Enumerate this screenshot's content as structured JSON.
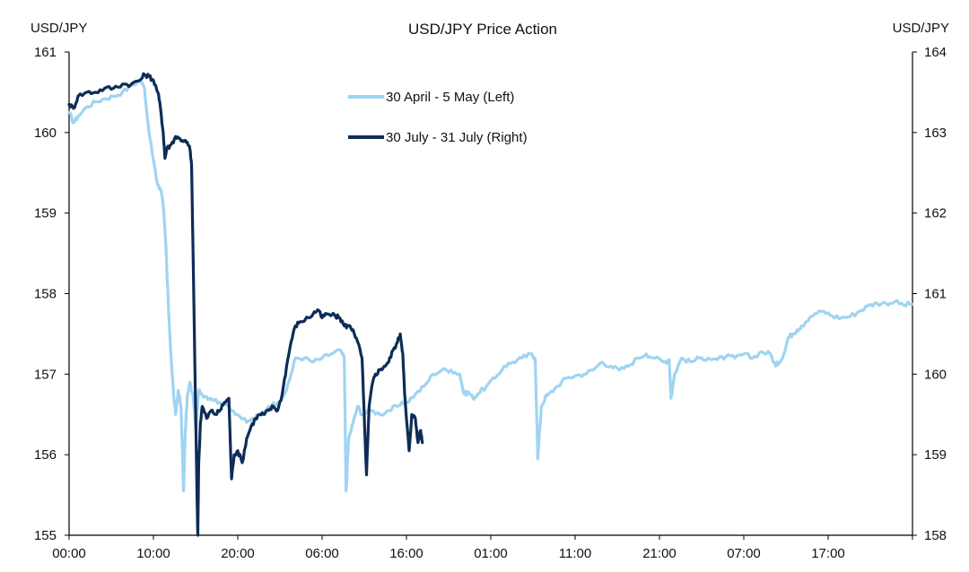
{
  "chart_data": {
    "type": "line",
    "title": "USD/JPY Price Action",
    "y_left_label": "USD/JPY",
    "y_right_label": "USD/JPY",
    "x_ticks": [
      "00:00",
      "10:00",
      "20:00",
      "06:00",
      "16:00",
      "01:00",
      "11:00",
      "21:00",
      "07:00",
      "17:00"
    ],
    "x_range_hours": [
      0,
      95
    ],
    "ylim_left": [
      155,
      161
    ],
    "ylim_right": [
      158,
      164
    ],
    "y_left_ticks": [
      "155",
      "156",
      "157",
      "158",
      "159",
      "160",
      "161"
    ],
    "y_right_ticks": [
      "158",
      "159",
      "160",
      "161",
      "162",
      "163",
      "164"
    ],
    "legend_position": "top-left",
    "series": [
      {
        "name": "30 April - 5 May (Left)",
        "axis": "left",
        "color": "#9fd4f2",
        "points": [
          [
            0.0,
            160.25
          ],
          [
            0.5,
            160.12
          ],
          [
            1.0,
            160.2
          ],
          [
            2.0,
            160.32
          ],
          [
            3.0,
            160.38
          ],
          [
            4.0,
            160.42
          ],
          [
            5.0,
            160.45
          ],
          [
            6.0,
            160.5
          ],
          [
            7.0,
            160.58
          ],
          [
            8.0,
            160.65
          ],
          [
            8.5,
            160.55
          ],
          [
            8.8,
            160.2
          ],
          [
            9.0,
            160.0
          ],
          [
            9.3,
            159.8
          ],
          [
            9.6,
            159.6
          ],
          [
            9.8,
            159.45
          ],
          [
            10.0,
            159.35
          ],
          [
            10.3,
            159.3
          ],
          [
            10.6,
            159.1
          ],
          [
            10.9,
            158.6
          ],
          [
            11.2,
            157.8
          ],
          [
            11.5,
            157.2
          ],
          [
            11.8,
            156.7
          ],
          [
            12.0,
            156.5
          ],
          [
            12.3,
            156.8
          ],
          [
            12.6,
            156.6
          ],
          [
            12.9,
            155.55
          ],
          [
            13.1,
            156.3
          ],
          [
            13.3,
            156.7
          ],
          [
            13.6,
            156.9
          ],
          [
            14.0,
            156.7
          ],
          [
            14.3,
            156.3
          ],
          [
            14.6,
            156.8
          ],
          [
            15.0,
            156.75
          ],
          [
            15.5,
            156.72
          ],
          [
            16.0,
            156.7
          ],
          [
            17.0,
            156.65
          ],
          [
            18.0,
            156.6
          ],
          [
            19.0,
            156.5
          ],
          [
            20.0,
            156.4
          ],
          [
            20.8,
            156.45
          ],
          [
            21.5,
            156.5
          ],
          [
            22.5,
            156.6
          ],
          [
            23.5,
            156.65
          ],
          [
            24.5,
            156.8
          ],
          [
            25.0,
            157.0
          ],
          [
            25.5,
            157.2
          ],
          [
            26.5,
            157.2
          ],
          [
            27.5,
            157.15
          ],
          [
            28.5,
            157.2
          ],
          [
            29.5,
            157.25
          ],
          [
            30.5,
            157.3
          ],
          [
            31.0,
            157.2
          ],
          [
            31.2,
            155.55
          ],
          [
            31.5,
            156.2
          ],
          [
            32.0,
            156.4
          ],
          [
            32.5,
            156.6
          ],
          [
            33.0,
            156.5
          ],
          [
            34.0,
            156.55
          ],
          [
            35.0,
            156.5
          ],
          [
            36.0,
            156.55
          ],
          [
            37.0,
            156.6
          ],
          [
            38.0,
            156.65
          ],
          [
            39.0,
            156.75
          ],
          [
            40.0,
            156.85
          ],
          [
            41.0,
            157.0
          ],
          [
            42.0,
            157.05
          ],
          [
            43.0,
            157.05
          ],
          [
            44.0,
            157.0
          ],
          [
            44.5,
            156.75
          ],
          [
            45.0,
            156.78
          ],
          [
            45.5,
            156.7
          ],
          [
            46.0,
            156.75
          ],
          [
            47.0,
            156.85
          ],
          [
            48.0,
            156.95
          ],
          [
            49.0,
            157.1
          ],
          [
            50.0,
            157.15
          ],
          [
            51.0,
            157.2
          ],
          [
            52.0,
            157.25
          ],
          [
            52.5,
            157.2
          ],
          [
            52.8,
            155.95
          ],
          [
            53.2,
            156.6
          ],
          [
            53.6,
            156.7
          ],
          [
            54.0,
            156.75
          ],
          [
            55.0,
            156.85
          ],
          [
            56.0,
            156.95
          ],
          [
            57.0,
            156.98
          ],
          [
            58.0,
            157.0
          ],
          [
            59.0,
            157.05
          ],
          [
            60.0,
            157.15
          ],
          [
            61.0,
            157.1
          ],
          [
            62.0,
            157.05
          ],
          [
            63.0,
            157.1
          ],
          [
            64.0,
            157.2
          ],
          [
            65.0,
            157.25
          ],
          [
            66.0,
            157.2
          ],
          [
            67.0,
            157.15
          ],
          [
            67.6,
            157.18
          ],
          [
            67.8,
            156.7
          ],
          [
            68.2,
            157.0
          ],
          [
            69.0,
            157.2
          ],
          [
            70.0,
            157.15
          ],
          [
            71.0,
            157.2
          ],
          [
            72.0,
            157.2
          ],
          [
            73.0,
            157.18
          ],
          [
            74.0,
            157.22
          ],
          [
            75.0,
            157.2
          ],
          [
            76.0,
            157.25
          ],
          [
            77.0,
            157.2
          ],
          [
            78.0,
            157.28
          ],
          [
            79.0,
            157.25
          ],
          [
            79.6,
            157.1
          ],
          [
            80.0,
            157.15
          ],
          [
            80.5,
            157.25
          ],
          [
            81.0,
            157.45
          ],
          [
            81.5,
            157.5
          ],
          [
            82.0,
            157.55
          ],
          [
            82.5,
            157.6
          ],
          [
            83.0,
            157.65
          ],
          [
            84.0,
            157.75
          ],
          [
            85.0,
            157.78
          ],
          [
            86.0,
            157.72
          ],
          [
            87.0,
            157.7
          ],
          [
            88.0,
            157.72
          ],
          [
            89.0,
            157.78
          ],
          [
            90.0,
            157.85
          ],
          [
            91.0,
            157.88
          ],
          [
            92.0,
            157.88
          ],
          [
            93.0,
            157.9
          ],
          [
            94.0,
            157.86
          ],
          [
            95.0,
            157.87
          ]
        ]
      },
      {
        "name": "30 July - 31 July (Right)",
        "axis": "right",
        "color": "#0d2c57",
        "points": [
          [
            0.0,
            163.35
          ],
          [
            0.5,
            163.3
          ],
          [
            1.0,
            163.45
          ],
          [
            2.0,
            163.5
          ],
          [
            3.0,
            163.5
          ],
          [
            4.0,
            163.55
          ],
          [
            5.0,
            163.55
          ],
          [
            6.0,
            163.6
          ],
          [
            7.0,
            163.6
          ],
          [
            8.0,
            163.65
          ],
          [
            8.5,
            163.72
          ],
          [
            9.0,
            163.7
          ],
          [
            9.5,
            163.65
          ],
          [
            10.0,
            163.5
          ],
          [
            10.3,
            163.3
          ],
          [
            10.6,
            163.0
          ],
          [
            10.8,
            162.68
          ],
          [
            11.0,
            162.8
          ],
          [
            11.5,
            162.85
          ],
          [
            12.0,
            162.95
          ],
          [
            12.5,
            162.92
          ],
          [
            13.0,
            162.9
          ],
          [
            13.4,
            162.85
          ],
          [
            13.6,
            162.8
          ],
          [
            13.8,
            162.6
          ],
          [
            14.0,
            161.3
          ],
          [
            14.2,
            159.9
          ],
          [
            14.4,
            158.55
          ],
          [
            14.5,
            158.0
          ],
          [
            14.6,
            158.9
          ],
          [
            14.8,
            159.4
          ],
          [
            15.0,
            159.6
          ],
          [
            15.5,
            159.45
          ],
          [
            16.0,
            159.55
          ],
          [
            16.5,
            159.5
          ],
          [
            17.0,
            159.55
          ],
          [
            17.5,
            159.65
          ],
          [
            18.0,
            159.7
          ],
          [
            18.3,
            158.7
          ],
          [
            18.6,
            159.0
          ],
          [
            19.0,
            159.05
          ],
          [
            19.5,
            158.9
          ],
          [
            20.0,
            159.2
          ],
          [
            20.5,
            159.35
          ],
          [
            21.0,
            159.45
          ],
          [
            21.5,
            159.5
          ],
          [
            22.0,
            159.5
          ],
          [
            22.5,
            159.55
          ],
          [
            23.0,
            159.6
          ],
          [
            23.5,
            159.55
          ],
          [
            24.0,
            159.75
          ],
          [
            24.5,
            160.1
          ],
          [
            25.0,
            160.4
          ],
          [
            25.5,
            160.6
          ],
          [
            26.0,
            160.65
          ],
          [
            27.0,
            160.7
          ],
          [
            27.5,
            160.75
          ],
          [
            28.0,
            160.8
          ],
          [
            28.5,
            160.7
          ],
          [
            29.0,
            160.75
          ],
          [
            30.0,
            160.72
          ],
          [
            30.5,
            160.7
          ],
          [
            31.0,
            160.6
          ],
          [
            31.5,
            160.6
          ],
          [
            32.0,
            160.55
          ],
          [
            32.5,
            160.4
          ],
          [
            33.0,
            160.2
          ],
          [
            33.3,
            159.3
          ],
          [
            33.5,
            158.75
          ],
          [
            33.8,
            159.6
          ],
          [
            34.2,
            159.9
          ],
          [
            34.5,
            160.0
          ],
          [
            35.0,
            160.05
          ],
          [
            35.5,
            160.1
          ],
          [
            36.0,
            160.15
          ],
          [
            36.5,
            160.3
          ],
          [
            37.0,
            160.4
          ],
          [
            37.3,
            160.5
          ],
          [
            37.6,
            160.25
          ],
          [
            37.8,
            159.75
          ],
          [
            38.0,
            159.45
          ],
          [
            38.3,
            159.05
          ],
          [
            38.6,
            159.5
          ],
          [
            39.0,
            159.45
          ],
          [
            39.3,
            159.15
          ],
          [
            39.6,
            159.3
          ],
          [
            39.8,
            159.15
          ]
        ]
      }
    ]
  }
}
